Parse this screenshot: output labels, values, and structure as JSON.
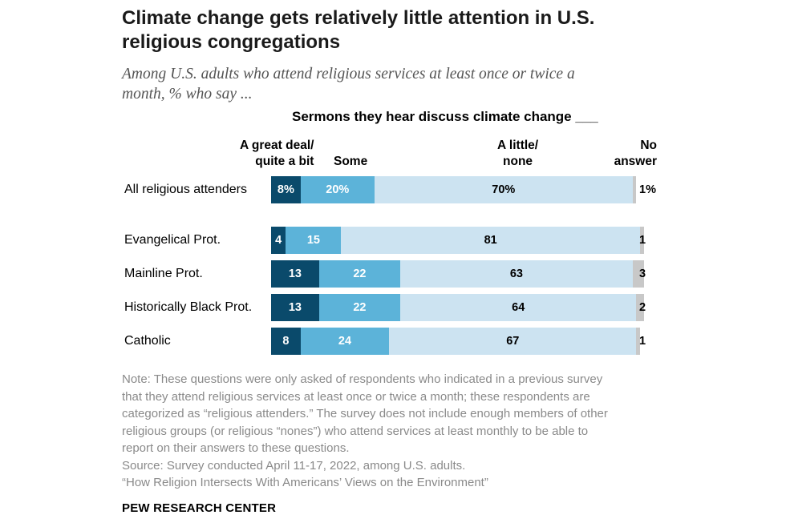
{
  "title_line1": "Climate change gets relatively little attention in U.S.",
  "title_line2": "religious congregations",
  "subtitle_line1": "Among U.S. adults who attend religious services at least once or twice a",
  "subtitle_line2": "month, % who say ...",
  "colors": {
    "great_deal": "#0a4a6b",
    "some": "#5cb3d9",
    "little": "#cce3f1",
    "no_answer": "#c8c8c8"
  },
  "chart_data": {
    "type": "bar",
    "orientation": "horizontal",
    "stacked": true,
    "title": "Sermons they hear discuss climate change ___",
    "categories": [
      "All religious attenders",
      "Evangelical Prot.",
      "Mainline Prot.",
      "Historically Black Prot.",
      "Catholic"
    ],
    "series": [
      {
        "name": "A great deal/ quite a bit",
        "values": [
          8,
          4,
          13,
          13,
          8
        ],
        "labels": [
          "8%",
          "4",
          "13",
          "13",
          "8"
        ]
      },
      {
        "name": "Some",
        "values": [
          20,
          15,
          22,
          22,
          24
        ],
        "labels": [
          "20%",
          "15",
          "22",
          "22",
          "24"
        ]
      },
      {
        "name": "A little/ none",
        "values": [
          70,
          81,
          63,
          64,
          67
        ],
        "labels": [
          "70%",
          "81",
          "63",
          "64",
          "67"
        ]
      },
      {
        "name": "No answer",
        "values": [
          1,
          1,
          3,
          2,
          1
        ],
        "labels": [
          "1%",
          "1",
          "3",
          "2",
          "1"
        ]
      }
    ],
    "xlim": [
      0,
      100
    ]
  },
  "col_heads": {
    "great_deal_line1": "A great deal/",
    "great_deal_line2": "quite a bit",
    "some": "Some",
    "little_line1": "A little/",
    "little_line2": "none",
    "noans_line1": "No",
    "noans_line2": "answer"
  },
  "note_lines": [
    "Note: These questions were only asked of respondents who indicated in a previous survey",
    "that they attend religious services at least once or twice a month; these respondents are",
    "categorized as “religious attenders.” The survey does not include enough members of other",
    "religious groups (or religious “nones”) who attend services at least monthly to be able to",
    "report on their answers to these questions."
  ],
  "source_line1": "Source: Survey conducted April 11-17, 2022, among U.S. adults.",
  "source_line2": "“How Religion Intersects With Americans’ Views on the Environment”",
  "brand": "PEW RESEARCH CENTER"
}
